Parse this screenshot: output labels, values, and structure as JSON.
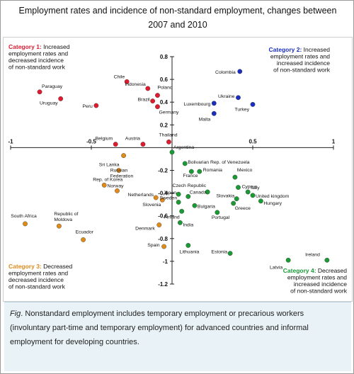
{
  "title": "Employment rates and incidence of non-standard employment, changes between 2007 and 2010",
  "caption": {
    "prefix": "Fig",
    "text": ". Nonstandard employment includes temporary employment or precarious workers (involuntary part-time and temporary employment) for advanced countries and informal employment for developing countries."
  },
  "categories": [
    {
      "id": "cat1",
      "title": "Category 1:",
      "lines": [
        "Increased",
        "employment rates and",
        "decreased incidence",
        "of non-standard work"
      ],
      "color": "#e01a2f",
      "pos": "top-left"
    },
    {
      "id": "cat2",
      "title": "Category 2:",
      "lines": [
        "Increased",
        "employment rates and",
        "increased incidence",
        "of non-standard work"
      ],
      "color": "#1a2fbf",
      "pos": "top-right"
    },
    {
      "id": "cat3",
      "title": "Category 3:",
      "lines": [
        "Decreased",
        "employment rates and",
        "decreased incidence",
        "of non-standard work"
      ],
      "color": "#e08a1a",
      "pos": "bottom-left"
    },
    {
      "id": "cat4",
      "title": "Category 4:",
      "lines": [
        "Decreased",
        "employment rates and",
        "increased incidence",
        "of non-standard work"
      ],
      "color": "#1a9a35",
      "pos": "bottom-right"
    }
  ],
  "chart_data": {
    "type": "scatter",
    "title": "Employment rates and incidence of non-standard employment, changes between 2007 and 2010",
    "xlim": [
      -1,
      1
    ],
    "ylim": [
      -1.2,
      0.8
    ],
    "x_ticks": [
      -1,
      -0.5,
      0.5,
      1
    ],
    "y_ticks": [
      0.8,
      0.6,
      0.4,
      0.2,
      -0.2,
      -0.4,
      -0.6,
      -0.8,
      -1,
      -1.2
    ],
    "x_tick_labels": [
      "-1",
      "-0.5",
      "0.5",
      "1"
    ],
    "y_tick_labels": [
      "0.8",
      "0.6",
      "0.4",
      "0.2",
      "-0.2",
      "-0.4",
      "-0.6",
      "-0.8",
      "-1",
      "-1.2"
    ],
    "grid": false,
    "series": [
      {
        "category": "cat1",
        "color": "#e01a2f",
        "points": [
          {
            "label": "Chile",
            "x": -0.28,
            "y": 0.58
          },
          {
            "label": "Paraguay",
            "x": -0.82,
            "y": 0.49
          },
          {
            "label": "Indonesia",
            "x": -0.15,
            "y": 0.52
          },
          {
            "label": "Poland",
            "x": -0.09,
            "y": 0.46
          },
          {
            "label": "Uruguay",
            "x": -0.69,
            "y": 0.43
          },
          {
            "label": "Brazil",
            "x": -0.12,
            "y": 0.41
          },
          {
            "label": "Peru",
            "x": -0.47,
            "y": 0.37
          },
          {
            "label": "Germany",
            "x": -0.09,
            "y": 0.36
          },
          {
            "label": "Belgium",
            "x": -0.35,
            "y": 0.03
          },
          {
            "label": "Austria",
            "x": -0.18,
            "y": 0.03
          },
          {
            "label": "Thailand",
            "x": -0.02,
            "y": 0.05
          }
        ]
      },
      {
        "category": "cat2",
        "color": "#1a2fbf",
        "points": [
          {
            "label": "Colombia",
            "x": 0.42,
            "y": 0.67
          },
          {
            "label": "Ukraine",
            "x": 0.41,
            "y": 0.44
          },
          {
            "label": "Luxembourg",
            "x": 0.26,
            "y": 0.39
          },
          {
            "label": "Turkey",
            "x": 0.5,
            "y": 0.38
          },
          {
            "label": "Malta",
            "x": 0.26,
            "y": 0.3
          }
        ]
      },
      {
        "category": "cat3",
        "color": "#e08a1a",
        "points": [
          {
            "label": "Sri Lanka",
            "x": -0.3,
            "y": -0.07
          },
          {
            "label": "Russian Federation",
            "x": -0.33,
            "y": -0.2
          },
          {
            "label": "Rep. of Korea",
            "x": -0.42,
            "y": -0.33
          },
          {
            "label": "Norway",
            "x": -0.34,
            "y": -0.38
          },
          {
            "label": "Netherlands",
            "x": -0.1,
            "y": -0.44
          },
          {
            "label": "Slovenia",
            "x": -0.06,
            "y": -0.46
          },
          {
            "label": "South Africa",
            "x": -0.91,
            "y": -0.67
          },
          {
            "label": "Republic of Moldova",
            "x": -0.7,
            "y": -0.69
          },
          {
            "label": "Denmark",
            "x": -0.08,
            "y": -0.68
          },
          {
            "label": "Ecuador",
            "x": -0.55,
            "y": -0.81
          },
          {
            "label": "Spain",
            "x": -0.05,
            "y": -0.87
          }
        ]
      },
      {
        "category": "cat4",
        "color": "#1a9a35",
        "points": [
          {
            "label": "Argentina",
            "x": 0.0,
            "y": -0.04
          },
          {
            "label": "Bolivarian Rep. of Venezuela",
            "x": 0.08,
            "y": -0.14
          },
          {
            "label": "France",
            "x": 0.12,
            "y": -0.21
          },
          {
            "label": "Romania",
            "x": 0.17,
            "y": -0.21
          },
          {
            "label": "Mexico",
            "x": 0.39,
            "y": -0.26
          },
          {
            "label": "Cyprus",
            "x": 0.41,
            "y": -0.35
          },
          {
            "label": "Czech Republic",
            "x": 0.22,
            "y": -0.39
          },
          {
            "label": "Italy",
            "x": 0.47,
            "y": -0.39
          },
          {
            "label": "Japan",
            "x": 0.04,
            "y": -0.41
          },
          {
            "label": "United kingdom",
            "x": 0.5,
            "y": -0.42
          },
          {
            "label": "Canada",
            "x": 0.1,
            "y": -0.43
          },
          {
            "label": "Slovakia",
            "x": 0.4,
            "y": -0.45
          },
          {
            "label": "Hungary",
            "x": 0.55,
            "y": -0.47
          },
          {
            "label": "Sweden",
            "x": 0.04,
            "y": -0.48
          },
          {
            "label": "Greece",
            "x": 0.38,
            "y": -0.49
          },
          {
            "label": "Bulgaria",
            "x": 0.14,
            "y": -0.51
          },
          {
            "label": "Finland",
            "x": 0.06,
            "y": -0.56
          },
          {
            "label": "Portugal",
            "x": 0.28,
            "y": -0.57
          },
          {
            "label": "India",
            "x": 0.05,
            "y": -0.66
          },
          {
            "label": "Lithuania",
            "x": 0.1,
            "y": -0.86
          },
          {
            "label": "Estonia",
            "x": 0.36,
            "y": -0.93
          },
          {
            "label": "Latvia",
            "x": 0.72,
            "y": -0.99
          },
          {
            "label": "Ireland",
            "x": 0.96,
            "y": -0.99
          }
        ]
      }
    ]
  }
}
